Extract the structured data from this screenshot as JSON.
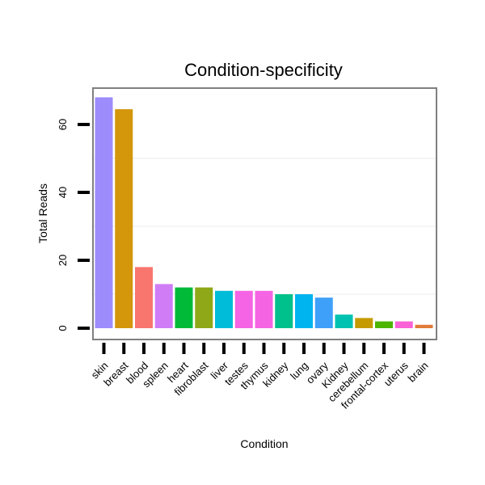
{
  "chart_data": {
    "type": "bar",
    "title": "Condition-specificity",
    "xlabel": "Condition",
    "ylabel": "Total Reads",
    "ylim": [
      0,
      70
    ],
    "yticks": [
      0,
      20,
      40,
      60
    ],
    "grid": true,
    "categories": [
      "skin",
      "breast",
      "blood",
      "spleen",
      "heart",
      "fibroblast",
      "liver",
      "testes",
      "thymus",
      "kidney",
      "lung",
      "ovary",
      "Kidney",
      "cerebellum",
      "frontal-cortex",
      "uterus",
      "brain"
    ],
    "values": [
      68,
      64.5,
      18,
      13,
      12,
      12,
      11,
      11,
      11,
      10,
      10,
      9,
      4,
      3,
      2,
      2,
      1
    ],
    "colors": [
      "#9d8cfc",
      "#d4960a",
      "#f8766d",
      "#d07cf7",
      "#00ba38",
      "#8fa818",
      "#00bcd8",
      "#f464e4",
      "#f564e3",
      "#00c08b",
      "#00b4f0",
      "#3ea0f8",
      "#00c2b0",
      "#c49a00",
      "#4db400",
      "#fb61d7",
      "#e07b39"
    ]
  }
}
